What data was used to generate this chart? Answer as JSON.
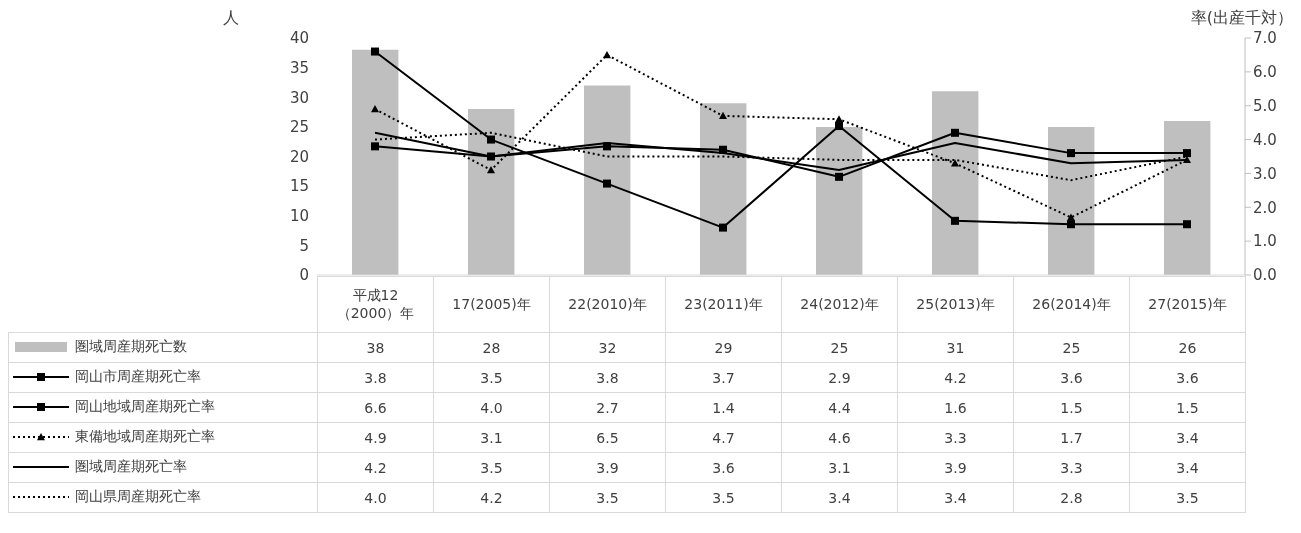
{
  "chart_data": {
    "type": "bar",
    "ylabel": "人",
    "y2label": "率(出産千対）",
    "categories": [
      "平成12（2000）年",
      "17(2005)年",
      "22(2010)年",
      "23(2011)年",
      "24(2012)年",
      "25(2013)年",
      "26(2014)年",
      "27(2015)年"
    ],
    "series": [
      {
        "name": "圏域周産期死亡数",
        "color": "#bfbfbf",
        "values": [
          38,
          28,
          32,
          29,
          25,
          31,
          25,
          26
        ],
        "value_labels": [
          "38",
          "28",
          "32",
          "29",
          "25",
          "31",
          "25",
          "26"
        ]
      },
      {
        "name": "岡山市周産期死亡率",
        "type": "line",
        "axis": "y2",
        "color": "#000000",
        "marker": "square",
        "line_style": "solid",
        "values": [
          3.8,
          3.5,
          3.8,
          3.7,
          2.9,
          4.2,
          3.6,
          3.6
        ],
        "value_labels": [
          "3.8",
          "3.5",
          "3.8",
          "3.7",
          "2.9",
          "4.2",
          "3.6",
          "3.6"
        ]
      },
      {
        "name": "岡山地域周産期死亡率",
        "type": "line",
        "axis": "y2",
        "color": "#000000",
        "marker": "square",
        "line_style": "solid",
        "values": [
          6.6,
          4.0,
          2.7,
          1.4,
          4.4,
          1.6,
          1.5,
          1.5
        ],
        "value_labels": [
          "6.6",
          "4.0",
          "2.7",
          "1.4",
          "4.4",
          "1.6",
          "1.5",
          "1.5"
        ]
      },
      {
        "name": "東備地域周産期死亡率",
        "type": "line",
        "axis": "y2",
        "color": "#000000",
        "marker": "triangle",
        "line_style": "dotted",
        "values": [
          4.9,
          3.1,
          6.5,
          4.7,
          4.6,
          3.3,
          1.7,
          3.4
        ],
        "value_labels": [
          "4.9",
          "3.1",
          "6.5",
          "4.7",
          "4.6",
          "3.3",
          "1.7",
          "3.4"
        ]
      },
      {
        "name": "圏域周産期死亡率",
        "type": "line",
        "axis": "y2",
        "color": "#000000",
        "marker": "none",
        "line_style": "solid",
        "values": [
          4.2,
          3.5,
          3.9,
          3.6,
          3.1,
          3.9,
          3.3,
          3.4
        ],
        "value_labels": [
          "4.2",
          "3.5",
          "3.9",
          "3.6",
          "3.1",
          "3.9",
          "3.3",
          "3.4"
        ]
      },
      {
        "name": "岡山県周産期死亡率",
        "type": "line",
        "axis": "y2",
        "color": "#000000",
        "marker": "none",
        "line_style": "dotted",
        "values": [
          4.0,
          4.2,
          3.5,
          3.5,
          3.4,
          3.4,
          2.8,
          3.5
        ],
        "value_labels": [
          "4.0",
          "4.2",
          "3.5",
          "3.5",
          "3.4",
          "3.4",
          "2.8",
          "3.5"
        ]
      }
    ],
    "ylim": [
      0,
      40
    ],
    "yticks": [
      0,
      5,
      10,
      15,
      20,
      25,
      30,
      35,
      40
    ],
    "y2lim": [
      0,
      7
    ],
    "y2ticks": [
      {
        "value": 0,
        "label": "0.0"
      },
      {
        "value": 1,
        "label": "1.0"
      },
      {
        "value": 2,
        "label": "2.0"
      },
      {
        "value": 3,
        "label": "3.0"
      },
      {
        "value": 4,
        "label": "4.0"
      },
      {
        "value": 5,
        "label": "5.0"
      },
      {
        "value": 6,
        "label": "6.0"
      },
      {
        "value": 7,
        "label": "7.0"
      }
    ],
    "grid": false,
    "legend": "bottom"
  }
}
